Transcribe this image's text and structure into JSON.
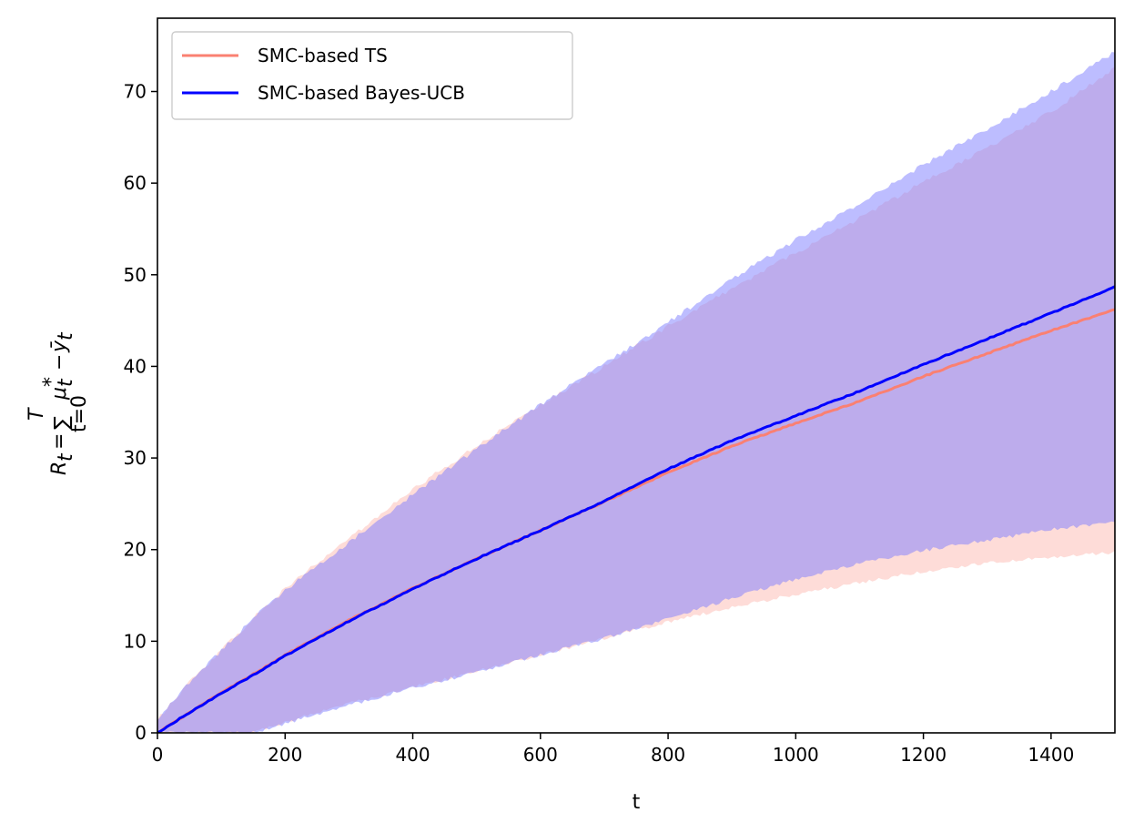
{
  "chart_data": {
    "type": "line",
    "xlabel": "t",
    "ylabel": "R_t = Σ_{t=0}^{T} μ*_t − ȳ_t",
    "ylabel_parts": {
      "R": "R",
      "t_sub": "t",
      "eq": "=",
      "sum": "∑",
      "sum_top": "T",
      "sum_bottom": "t=0",
      "mu": "μ",
      "mu_sup": "*",
      "mu_sub": "t",
      "minus": "−",
      "y": "ȳ",
      "y_sub": "t"
    },
    "xlim": [
      0,
      1500
    ],
    "ylim": [
      0,
      78
    ],
    "xticks": [
      0,
      200,
      400,
      600,
      800,
      1000,
      1200,
      1400
    ],
    "yticks": [
      0,
      10,
      20,
      30,
      40,
      50,
      60,
      70
    ],
    "grid": false,
    "legend_position": "top-left",
    "series": [
      {
        "name": "SMC-based TS",
        "color": "#fa8072",
        "band_color": "#fa8072",
        "band_opacity": 0.28,
        "x": [
          0,
          50,
          100,
          150,
          200,
          300,
          400,
          500,
          600,
          700,
          800,
          900,
          1000,
          1100,
          1200,
          1300,
          1400,
          1500
        ],
        "mean": [
          0,
          2.2,
          4.4,
          6.4,
          8.5,
          12.3,
          15.8,
          19.0,
          22.1,
          25.2,
          28.4,
          31.3,
          33.8,
          36.2,
          38.9,
          41.4,
          43.9,
          46.2
        ],
        "lower": [
          0,
          0,
          0,
          0,
          1.2,
          3.2,
          5.0,
          6.7,
          8.5,
          10.3,
          12.1,
          13.7,
          15.1,
          16.4,
          17.6,
          18.6,
          19.2,
          19.7
        ],
        "upper": [
          1.5,
          5.5,
          9.0,
          12.5,
          15.8,
          21.2,
          26.6,
          31.3,
          35.8,
          40.0,
          44.4,
          48.5,
          52.4,
          56.2,
          60.1,
          63.8,
          67.8,
          72.5
        ]
      },
      {
        "name": "SMC-based Bayes-UCB",
        "color": "#0000ff",
        "band_color": "#7b7bff",
        "band_opacity": 0.5,
        "x": [
          0,
          50,
          100,
          150,
          200,
          300,
          400,
          500,
          600,
          700,
          800,
          900,
          1000,
          1100,
          1200,
          1300,
          1400,
          1500
        ],
        "mean": [
          0,
          2.2,
          4.3,
          6.3,
          8.4,
          12.2,
          15.7,
          19.0,
          22.1,
          25.3,
          28.8,
          31.9,
          34.6,
          37.3,
          40.2,
          43.0,
          45.8,
          48.7
        ],
        "lower": [
          0,
          0,
          0,
          0,
          1.0,
          3.0,
          4.9,
          6.6,
          8.5,
          10.3,
          12.4,
          14.7,
          16.8,
          18.5,
          19.9,
          21.0,
          22.2,
          23.0
        ],
        "upper": [
          1.5,
          5.5,
          9.0,
          12.5,
          15.6,
          20.8,
          26.0,
          31.0,
          35.8,
          40.3,
          44.8,
          49.5,
          53.8,
          57.8,
          62.0,
          65.9,
          70.0,
          74.3
        ]
      }
    ]
  }
}
